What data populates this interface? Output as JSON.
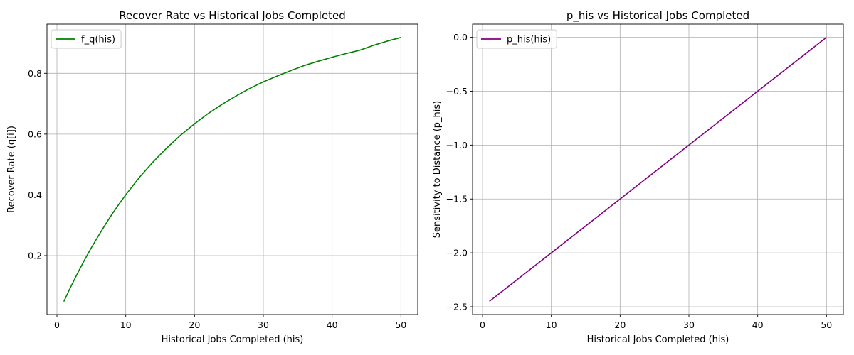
{
  "chart_data": [
    {
      "type": "line",
      "title": "Recover Rate vs Historical Jobs Completed",
      "xlabel": "Historical Jobs Completed (his)",
      "ylabel": "Recover Rate (q[i])",
      "xlim": [
        -1.45,
        52.45
      ],
      "ylim": [
        0.006,
        0.962
      ],
      "xticks": [
        0,
        10,
        20,
        30,
        40,
        50
      ],
      "xtick_labels": [
        "0",
        "10",
        "20",
        "30",
        "40",
        "50"
      ],
      "yticks": [
        0.2,
        0.4,
        0.6,
        0.8
      ],
      "ytick_labels": [
        "0.2",
        "0.4",
        "0.6",
        "0.8"
      ],
      "grid": true,
      "legend_position": "upper left",
      "series": [
        {
          "name": "f_q(his)",
          "color": "#008000",
          "x": [
            1,
            2,
            3,
            4,
            5,
            6,
            7,
            8,
            9,
            10,
            12,
            14,
            16,
            18,
            20,
            22,
            24,
            26,
            28,
            30,
            32,
            34,
            36,
            38,
            40,
            42,
            44,
            46,
            48,
            50
          ],
          "y": [
            0.049,
            0.097,
            0.142,
            0.185,
            0.226,
            0.264,
            0.301,
            0.336,
            0.369,
            0.4,
            0.458,
            0.509,
            0.555,
            0.597,
            0.634,
            0.668,
            0.698,
            0.725,
            0.75,
            0.772,
            0.791,
            0.809,
            0.826,
            0.84,
            0.853,
            0.865,
            0.876,
            0.892,
            0.906,
            0.918
          ]
        }
      ]
    },
    {
      "type": "line",
      "title": "p_his vs Historical Jobs Completed",
      "xlabel": "Historical Jobs Completed (his)",
      "ylabel": "Sensitivity to Distance (p_his)",
      "xlim": [
        -1.45,
        52.45
      ],
      "ylim": [
        -2.5725,
        0.1225
      ],
      "xticks": [
        0,
        10,
        20,
        30,
        40,
        50
      ],
      "xtick_labels": [
        "0",
        "10",
        "20",
        "30",
        "40",
        "50"
      ],
      "yticks": [
        -2.5,
        -2.0,
        -1.5,
        -1.0,
        -0.5,
        0.0
      ],
      "ytick_labels": [
        "−2.5",
        "−2.0",
        "−1.5",
        "−1.0",
        "−0.5",
        "0.0"
      ],
      "grid": true,
      "legend_position": "upper left",
      "series": [
        {
          "name": "p_his(his)",
          "color": "#800080",
          "x": [
            1,
            50
          ],
          "y": [
            -2.45,
            0.0
          ]
        }
      ]
    }
  ]
}
